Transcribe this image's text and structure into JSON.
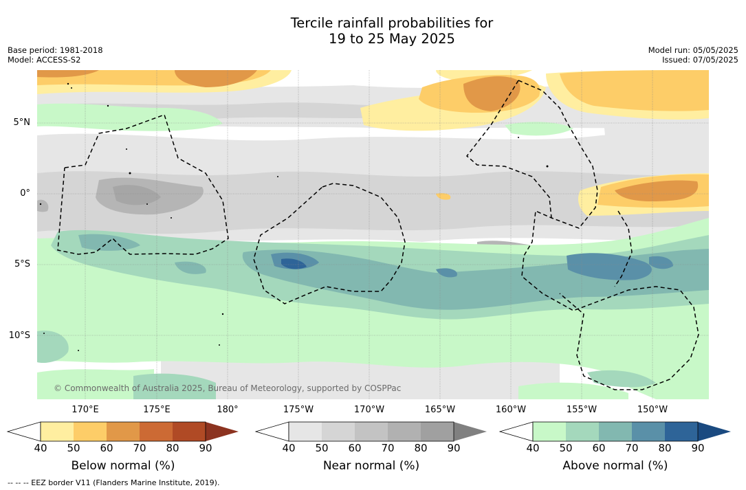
{
  "title_line1": "Tercile rainfall probabilities for",
  "title_line2": "19 to 25 May 2025",
  "base_period": "Base period: 1981-2018",
  "model": "Model: ACCESS-S2",
  "model_run": "Model run: 05/05/2025",
  "issued": "Issued: 07/05/2025",
  "lat_labels": [
    "5°N",
    "0°",
    "5°S",
    "10°S"
  ],
  "lon_labels": [
    "170°E",
    "175°E",
    "180°",
    "175°W",
    "170°W",
    "165°W",
    "160°W",
    "155°W",
    "150°W"
  ],
  "copyright": "© Commonwealth of Australia 2025, Bureau of Meteorology, supported by COSPPac",
  "colorbars": [
    {
      "label": "Below normal (%)",
      "ticks": [
        "40",
        "50",
        "60",
        "70",
        "80",
        "90"
      ],
      "colors": [
        "#ffeea0",
        "#fdcd68",
        "#e19848",
        "#cc6a34",
        "#b04a25",
        "#8c3320"
      ]
    },
    {
      "label": "Near normal (%)",
      "ticks": [
        "40",
        "50",
        "60",
        "70",
        "80",
        "90"
      ],
      "colors": [
        "#e6e6e6",
        "#d5d5d5",
        "#c3c3c3",
        "#b1b1b1",
        "#a0a0a0",
        "#808080"
      ]
    },
    {
      "label": "Above normal (%)",
      "ticks": [
        "40",
        "50",
        "60",
        "70",
        "80",
        "90"
      ],
      "colors": [
        "#c8f8c8",
        "#a4d8bc",
        "#82b8b0",
        "#5a90a8",
        "#2e6498",
        "#1a4a80"
      ]
    }
  ],
  "legend_note": "--  --  -- EEZ border V11 (Flanders Marine Institute, 2019)."
}
